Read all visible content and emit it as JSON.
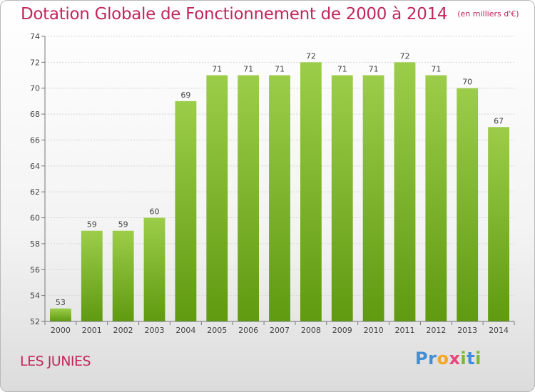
{
  "title": "Dotation Globale de Fonctionnement de 2000 à 2014",
  "subtitle": "(en milliers d'€)",
  "commune": "LES JUNIES",
  "logo": {
    "letters": [
      "P",
      "r",
      "o",
      "x",
      "i",
      "t",
      "i"
    ],
    "colors": [
      "#3e8ed8",
      "#3e8ed8",
      "#f5a623",
      "#e8457a",
      "#7cb82f",
      "#3e8ed8",
      "#7cb82f"
    ]
  },
  "colors": {
    "bar_top": "#9ccd4a",
    "bar_bottom": "#5f9a10",
    "title": "#c0275a"
  },
  "chart_data": {
    "type": "bar",
    "categories": [
      "2000",
      "2001",
      "2002",
      "2003",
      "2004",
      "2005",
      "2006",
      "2007",
      "2008",
      "2009",
      "2010",
      "2011",
      "2012",
      "2013",
      "2014"
    ],
    "values": [
      53,
      59,
      59,
      60,
      69,
      71,
      71,
      71,
      72,
      71,
      71,
      72,
      71,
      70,
      67
    ],
    "ylim": [
      52,
      74
    ],
    "yticks": [
      52,
      54,
      56,
      58,
      60,
      62,
      64,
      66,
      68,
      70,
      72,
      74
    ],
    "grid": true
  }
}
